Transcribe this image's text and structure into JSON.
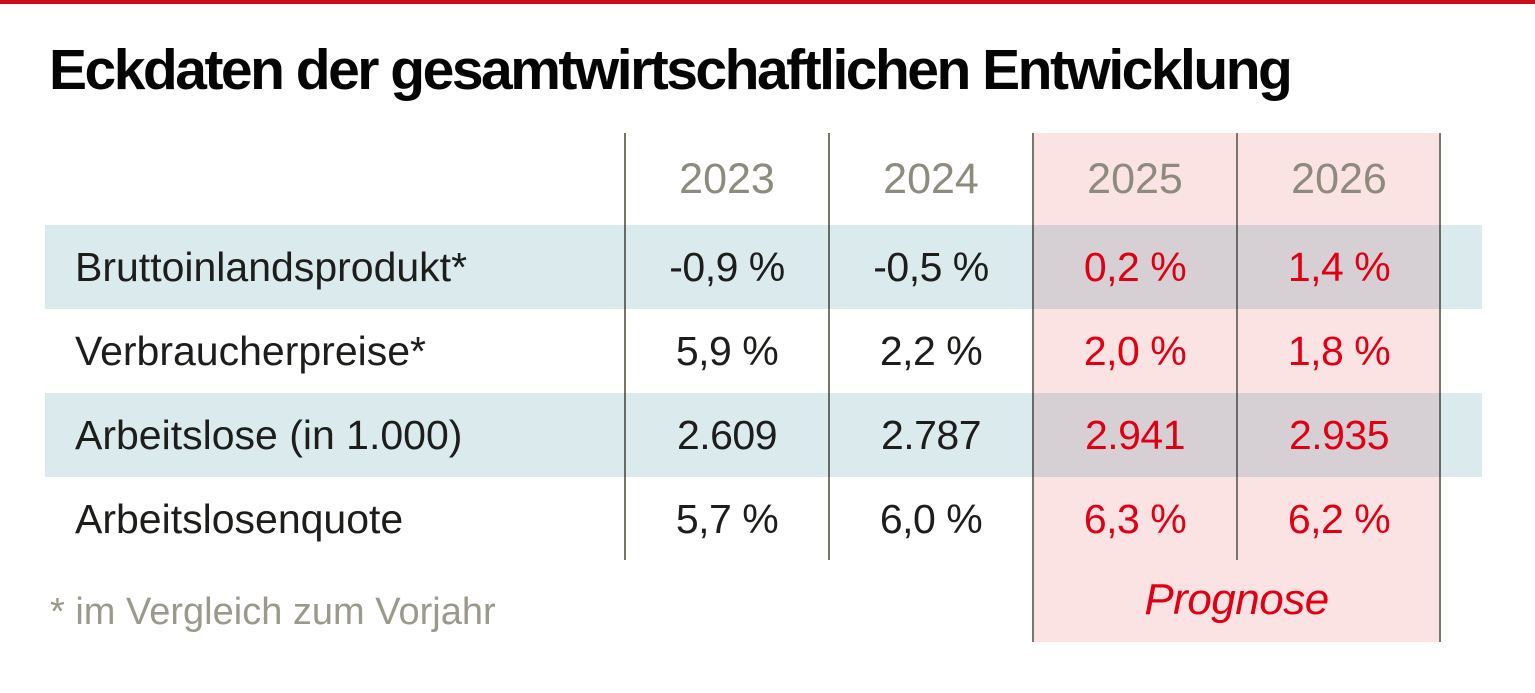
{
  "colors": {
    "accent_red": "#e10013",
    "top_line_red": "#cb0e16",
    "forecast_bg_pink": "#fbe3e4",
    "row_band_blue": "#daeaed",
    "band_forecast_overlap_gray": "#d7d0d4",
    "header_year_gray": "#8d8b7e",
    "footnote_gray": "#9b998c",
    "separator_line": "#79756a"
  },
  "chart_data": {
    "type": "table",
    "title": "Eckdaten der gesamtwirtschaftlichen Entwicklung",
    "columns": [
      "2023",
      "2024",
      "2025",
      "2026"
    ],
    "forecast_columns": [
      "2025",
      "2026"
    ],
    "rows": [
      {
        "label": "Bruttoinlandsprodukt*",
        "values": [
          "-0,9 %",
          "-0,5 %",
          "0,2 %",
          "1,4 %"
        ]
      },
      {
        "label": "Verbraucherpreise*",
        "values": [
          "5,9 %",
          "2,2 %",
          "2,0 %",
          "1,8 %"
        ]
      },
      {
        "label": "Arbeitslose (in 1.000)",
        "values": [
          "2.609",
          "2.787",
          "2.941",
          "2.935"
        ]
      },
      {
        "label": "Arbeitslosenquote",
        "values": [
          "5,7 %",
          "6,0 %",
          "6,3 %",
          "6,2 %"
        ]
      }
    ],
    "forecast_note": "Prognose",
    "footnote": "* im Vergleich zum Vorjahr",
    "layout": {
      "shaded_row_indexes": [
        0,
        2
      ],
      "grid": "vertical separators only",
      "forecast_note_position": "bottom of forecast columns"
    }
  }
}
